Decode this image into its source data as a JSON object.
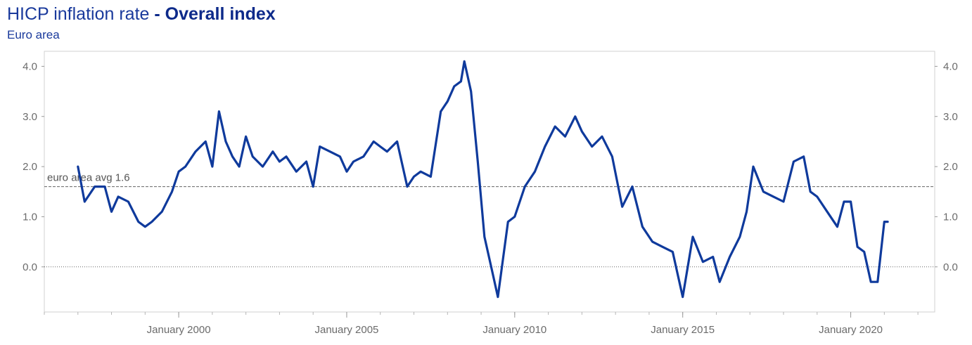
{
  "header": {
    "title_main": "HICP inflation rate",
    "title_sep": " - ",
    "title_bold": "Overall index",
    "subtitle": "Euro area"
  },
  "colors": {
    "line": "#0f3a9c",
    "title": "#1a3a9c",
    "grid_border": "#d0d0d0",
    "ref_line": "#666666"
  },
  "chart_data": {
    "type": "line",
    "title": "HICP inflation rate - Overall index",
    "subtitle": "Euro area",
    "xlabel": "",
    "ylabel": "",
    "ylim": [
      -0.9,
      4.3
    ],
    "xlim": [
      1996.0,
      2022.5
    ],
    "y_ticks": [
      0.0,
      1.0,
      2.0,
      3.0,
      4.0
    ],
    "y_tick_labels": [
      "0.0",
      "1.0",
      "2.0",
      "3.0",
      "4.0"
    ],
    "x_ticks": [
      2000,
      2005,
      2010,
      2015,
      2020
    ],
    "x_tick_labels": [
      "January 2000",
      "January 2005",
      "January 2010",
      "January 2015",
      "January 2020"
    ],
    "grid": false,
    "dual_y_axis": true,
    "reference_lines": [
      {
        "value": 1.6,
        "label": "euro area avg 1.6",
        "style": "dashed"
      },
      {
        "value": 0.0,
        "label": "",
        "style": "dotted"
      }
    ],
    "series": [
      {
        "x": [
          1997.0,
          1997.2,
          1997.5,
          1997.8,
          1998.0,
          1998.2,
          1998.5,
          1998.8,
          1999.0,
          1999.2,
          1999.5,
          1999.8,
          2000.0,
          2000.2,
          2000.5,
          2000.8,
          2001.0,
          2001.2,
          2001.4,
          2001.6,
          2001.8,
          2002.0,
          2002.2,
          2002.5,
          2002.8,
          2003.0,
          2003.2,
          2003.5,
          2003.8,
          2004.0,
          2004.2,
          2004.5,
          2004.8,
          2005.0,
          2005.2,
          2005.5,
          2005.8,
          2006.0,
          2006.2,
          2006.5,
          2006.8,
          2007.0,
          2007.2,
          2007.5,
          2007.8,
          2008.0,
          2008.2,
          2008.4,
          2008.5,
          2008.7,
          2008.9,
          2009.1,
          2009.3,
          2009.5,
          2009.6,
          2009.8,
          2010.0,
          2010.3,
          2010.6,
          2010.9,
          2011.2,
          2011.5,
          2011.8,
          2012.0,
          2012.3,
          2012.6,
          2012.9,
          2013.2,
          2013.5,
          2013.8,
          2014.1,
          2014.4,
          2014.7,
          2015.0,
          2015.3,
          2015.6,
          2015.9,
          2016.1,
          2016.4,
          2016.7,
          2016.9,
          2017.1,
          2017.4,
          2017.7,
          2018.0,
          2018.3,
          2018.6,
          2018.8,
          2019.0,
          2019.3,
          2019.6,
          2019.8,
          2020.0,
          2020.2,
          2020.4,
          2020.6,
          2020.8,
          2021.0,
          2021.1
        ],
        "values": [
          2.0,
          1.3,
          1.6,
          1.6,
          1.1,
          1.4,
          1.3,
          0.9,
          0.8,
          0.9,
          1.1,
          1.5,
          1.9,
          2.0,
          2.3,
          2.5,
          2.0,
          3.1,
          2.5,
          2.2,
          2.0,
          2.6,
          2.2,
          2.0,
          2.3,
          2.1,
          2.2,
          1.9,
          2.1,
          1.6,
          2.4,
          2.3,
          2.2,
          1.9,
          2.1,
          2.2,
          2.5,
          2.4,
          2.3,
          2.5,
          1.6,
          1.8,
          1.9,
          1.8,
          3.1,
          3.3,
          3.6,
          3.7,
          4.1,
          3.5,
          2.1,
          0.6,
          0.0,
          -0.6,
          -0.1,
          0.9,
          1.0,
          1.6,
          1.9,
          2.4,
          2.8,
          2.6,
          3.0,
          2.7,
          2.4,
          2.6,
          2.2,
          1.2,
          1.6,
          0.8,
          0.5,
          0.4,
          0.3,
          -0.6,
          0.6,
          0.1,
          0.2,
          -0.3,
          0.2,
          0.6,
          1.1,
          2.0,
          1.5,
          1.4,
          1.3,
          2.1,
          2.2,
          1.5,
          1.4,
          1.1,
          0.8,
          1.3,
          1.3,
          0.4,
          0.3,
          -0.3,
          -0.3,
          0.9,
          0.9
        ]
      }
    ]
  }
}
